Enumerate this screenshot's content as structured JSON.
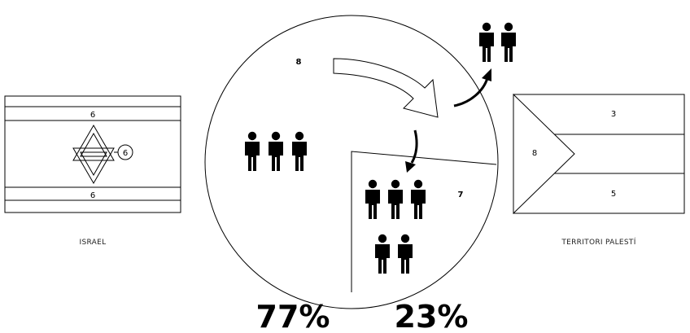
{
  "israel": {
    "caption": "ISRAEL",
    "top_stripe_label": "6",
    "bottom_stripe_label": "6",
    "star_label": "6"
  },
  "palestine": {
    "caption": "TERRITORI PALESTÍ",
    "top_band_label": "3",
    "bottom_band_label": "5",
    "triangle_label": "8"
  },
  "pie": {
    "main_label": "8",
    "slice_label": "7"
  },
  "percentages": {
    "left": "77%",
    "right": "23%"
  }
}
